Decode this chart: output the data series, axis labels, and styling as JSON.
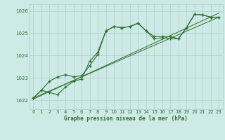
{
  "bg_color": "#ceeae6",
  "grid_color": "#aaccc8",
  "line_color": "#2d6e2d",
  "title": "Graphe pression niveau de la mer (hPa)",
  "ylim": [
    1021.6,
    1026.3
  ],
  "xlim": [
    -0.5,
    23.5
  ],
  "yticks": [
    1022,
    1023,
    1024,
    1025,
    1026
  ],
  "xticks": [
    0,
    1,
    2,
    3,
    4,
    5,
    6,
    7,
    8,
    9,
    10,
    11,
    12,
    13,
    14,
    15,
    16,
    17,
    18,
    19,
    20,
    21,
    22,
    23
  ],
  "series1_x": [
    0,
    1,
    2,
    3,
    4,
    5,
    6,
    7,
    8,
    9,
    10,
    11,
    12,
    13,
    14,
    15,
    16,
    17,
    18,
    19,
    20,
    21,
    22,
    23
  ],
  "series1_y": [
    1022.1,
    1022.45,
    1022.35,
    1022.25,
    1022.6,
    1022.85,
    1022.95,
    1023.75,
    1024.15,
    1025.1,
    1025.3,
    1025.25,
    1025.3,
    1025.45,
    1025.1,
    1024.75,
    1024.8,
    1024.75,
    1024.75,
    1025.25,
    1025.85,
    1025.82,
    1025.72,
    1025.72
  ],
  "series2_x": [
    0,
    1,
    2,
    3,
    4,
    5,
    6,
    7,
    8,
    9,
    10,
    11,
    12,
    13,
    14,
    15,
    16,
    17,
    18,
    19,
    20,
    21,
    22,
    23
  ],
  "series2_y": [
    1022.1,
    1022.45,
    1022.85,
    1023.05,
    1023.15,
    1023.05,
    1023.1,
    1023.55,
    1024.05,
    1025.1,
    1025.3,
    1025.25,
    1025.3,
    1025.45,
    1025.1,
    1024.85,
    1024.85,
    1024.85,
    1024.75,
    1025.25,
    1025.85,
    1025.82,
    1025.72,
    1025.72
  ],
  "series3_x": [
    0,
    23
  ],
  "series3_y": [
    1022.1,
    1025.72
  ],
  "series4_x": [
    0,
    23
  ],
  "series4_y": [
    1022.05,
    1025.9
  ]
}
